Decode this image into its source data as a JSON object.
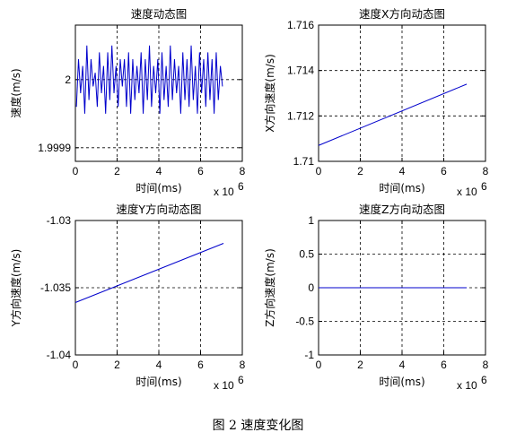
{
  "chart_data": [
    {
      "type": "line",
      "title": "速度动态图",
      "xlabel": "时间(ms)",
      "ylabel": "速度(m/s)",
      "x_multiplier": "x 10",
      "x_multiplier_exp": "6",
      "xlim": [
        0,
        8
      ],
      "ylim": [
        1.99988,
        2.00008
      ],
      "xticks": [
        "0",
        "2",
        "4",
        "6",
        "8"
      ],
      "yticks": [
        {
          "value": 2.0,
          "label": "2"
        },
        {
          "value": 1.9999,
          "label": "1.9999"
        }
      ],
      "grid": true,
      "color": "#0000cc",
      "series": [
        {
          "x": [
            0.05,
            0.15,
            0.25,
            0.35,
            0.45,
            0.55,
            0.65,
            0.75,
            0.85,
            0.95,
            1.05,
            1.15,
            1.25,
            1.35,
            1.45,
            1.55,
            1.65,
            1.75,
            1.85,
            1.95,
            2.05,
            2.15,
            2.25,
            2.35,
            2.45,
            2.55,
            2.65,
            2.75,
            2.85,
            2.95,
            3.05,
            3.15,
            3.25,
            3.35,
            3.45,
            3.55,
            3.65,
            3.75,
            3.85,
            3.95,
            4.05,
            4.15,
            4.25,
            4.35,
            4.45,
            4.55,
            4.65,
            4.75,
            4.85,
            4.95,
            5.05,
            5.15,
            5.25,
            5.35,
            5.45,
            5.55,
            5.65,
            5.75,
            5.85,
            5.95,
            6.05,
            6.15,
            6.25,
            6.35,
            6.45,
            6.55,
            6.65,
            6.75,
            6.85,
            6.95,
            7.05
          ],
          "y": [
            1.99996,
            2.00003,
            1.99998,
            2.00002,
            1.99995,
            2.00005,
            1.99997,
            2.00003,
            1.99999,
            2.00001,
            1.99996,
            2.00004,
            1.99998,
            2.00002,
            1.99995,
            2.00004,
            1.99997,
            2.00005,
            1.99998,
            2.00002,
            1.99996,
            2.00003,
            1.99999,
            2.00003,
            1.99996,
            2.00004,
            1.99995,
            2.00003,
            1.99997,
            2.00002,
            1.99998,
            2.00004,
            1.99995,
            2.00003,
            1.99997,
            2.00005,
            1.99996,
            2.00002,
            1.99998,
            2.00003,
            1.99995,
            2.00004,
            1.99997,
            2.00002,
            1.99996,
            2.00005,
            1.99997,
            2.00003,
            1.99998,
            2.00002,
            1.99995,
            2.00004,
            1.99997,
            2.00003,
            1.99996,
            2.00005,
            1.99997,
            2.00002,
            1.99995,
            2.00004,
            1.99998,
            2.00003,
            1.99996,
            2.00004,
            1.99997,
            2.00003,
            1.99995,
            2.00004,
            1.99997,
            2.00002,
            1.99999
          ]
        }
      ]
    },
    {
      "type": "line",
      "title": "速度X方向动态图",
      "xlabel": "时间(ms)",
      "ylabel": "X方向速度(m/s)",
      "x_multiplier": "x 10",
      "x_multiplier_exp": "6",
      "xlim": [
        0,
        8
      ],
      "ylim": [
        1.71,
        1.716
      ],
      "xticks": [
        "0",
        "2",
        "4",
        "6",
        "8"
      ],
      "yticks": [
        {
          "value": 1.71,
          "label": "1.71"
        },
        {
          "value": 1.712,
          "label": "1.712"
        },
        {
          "value": 1.714,
          "label": "1.714"
        },
        {
          "value": 1.716,
          "label": "1.716"
        }
      ],
      "grid": true,
      "color": "#0000cc",
      "series": [
        {
          "x": [
            0,
            7.1
          ],
          "y": [
            1.7107,
            1.7134
          ]
        }
      ]
    },
    {
      "type": "line",
      "title": "速度Y方向动态图",
      "xlabel": "时间(ms)",
      "ylabel": "Y方向速度(m/s)",
      "x_multiplier": "x 10",
      "x_multiplier_exp": "6",
      "xlim": [
        0,
        8
      ],
      "ylim": [
        -1.04,
        -1.03
      ],
      "xticks": [
        "0",
        "2",
        "4",
        "6",
        "8"
      ],
      "yticks": [
        {
          "value": -1.03,
          "label": "-1.03"
        },
        {
          "value": -1.035,
          "label": "-1.035"
        },
        {
          "value": -1.04,
          "label": "-1.04"
        }
      ],
      "grid": true,
      "color": "#0000cc",
      "series": [
        {
          "x": [
            0,
            7.1
          ],
          "y": [
            -1.0361,
            -1.0317
          ]
        }
      ]
    },
    {
      "type": "line",
      "title": "速度Z方向动态图",
      "xlabel": "时间(ms)",
      "ylabel": "Z方向速度(m/s)",
      "x_multiplier": "x 10",
      "x_multiplier_exp": "6",
      "xlim": [
        0,
        8
      ],
      "ylim": [
        -1,
        1
      ],
      "xticks": [
        "0",
        "2",
        "4",
        "6",
        "8"
      ],
      "yticks": [
        {
          "value": 1,
          "label": "1"
        },
        {
          "value": 0.5,
          "label": "0.5"
        },
        {
          "value": 0,
          "label": "0"
        },
        {
          "value": -0.5,
          "label": "-0.5"
        },
        {
          "value": -1,
          "label": "-1"
        }
      ],
      "grid": true,
      "color": "#0000cc",
      "series": [
        {
          "x": [
            0,
            7.1
          ],
          "y": [
            0,
            0
          ]
        }
      ]
    }
  ],
  "caption": "图 2  速度变化图"
}
